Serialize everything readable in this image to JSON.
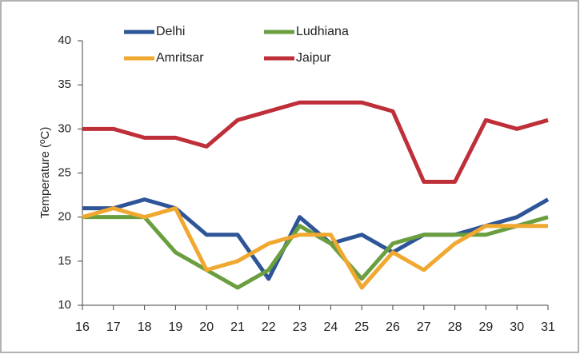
{
  "chart_data": {
    "type": "line",
    "y_label": "Temperature (ºC)",
    "x": [
      16,
      17,
      18,
      19,
      20,
      21,
      22,
      23,
      24,
      25,
      26,
      27,
      28,
      29,
      30,
      31
    ],
    "xlim": [
      16,
      31
    ],
    "xticks": [
      16,
      17,
      18,
      19,
      20,
      21,
      22,
      23,
      24,
      25,
      26,
      27,
      28,
      29,
      30,
      31
    ],
    "ylim": [
      10,
      40
    ],
    "yticks": [
      10,
      15,
      20,
      25,
      30,
      35,
      40
    ],
    "grid": false,
    "legend": "top",
    "series": [
      {
        "name": "Delhi",
        "color": "#2e5597",
        "values": [
          21,
          21,
          22,
          21,
          18,
          18,
          13,
          20,
          17,
          18,
          16,
          18,
          18,
          19,
          20,
          22
        ]
      },
      {
        "name": "Ludhiana",
        "color": "#6a9e3f",
        "values": [
          20,
          20,
          20,
          16,
          14,
          12,
          14,
          19,
          17,
          13,
          17,
          18,
          18,
          18,
          19,
          20
        ]
      },
      {
        "name": "Amritsar",
        "color": "#f0a830",
        "values": [
          20,
          21,
          20,
          21,
          14,
          15,
          17,
          18,
          18,
          12,
          16,
          14,
          17,
          19,
          19,
          19
        ]
      },
      {
        "name": "Jaipur",
        "color": "#be2f3a",
        "values": [
          30,
          30,
          29,
          29,
          28,
          31,
          32,
          33,
          33,
          33,
          32,
          24,
          24,
          31,
          30,
          31
        ]
      }
    ]
  }
}
